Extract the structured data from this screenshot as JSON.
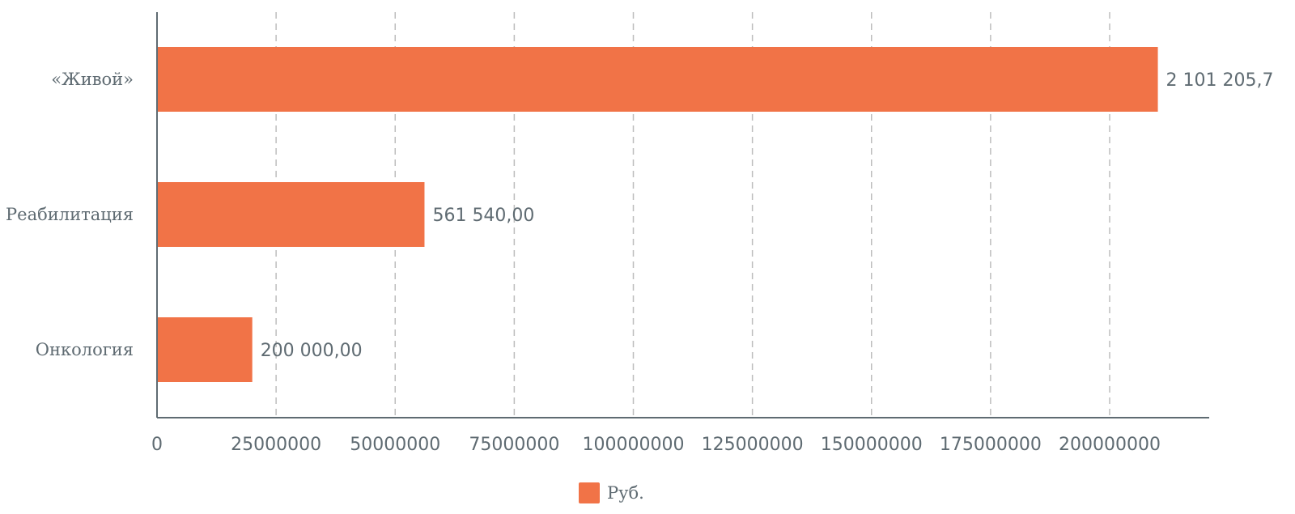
{
  "chart_data": {
    "type": "bar",
    "orientation": "horizontal",
    "categories": [
      "«Живой»",
      "Реабилитация",
      "Онкология"
    ],
    "series": [
      {
        "name": "Руб.",
        "values": [
          210120570,
          56154000,
          20000000
        ],
        "data_labels": [
          "2 101 205,7",
          "561 540,00",
          "200 000,00"
        ]
      }
    ],
    "x_ticks": [
      "0",
      "25000000",
      "50000000",
      "75000000",
      "100000000",
      "125000000",
      "150000000",
      "175000000",
      "200000000"
    ],
    "xlim": [
      0,
      221000000
    ],
    "grid": true,
    "legend_position": "bottom",
    "bar_color": "#f17347"
  },
  "legend": {
    "label": "Руб."
  }
}
